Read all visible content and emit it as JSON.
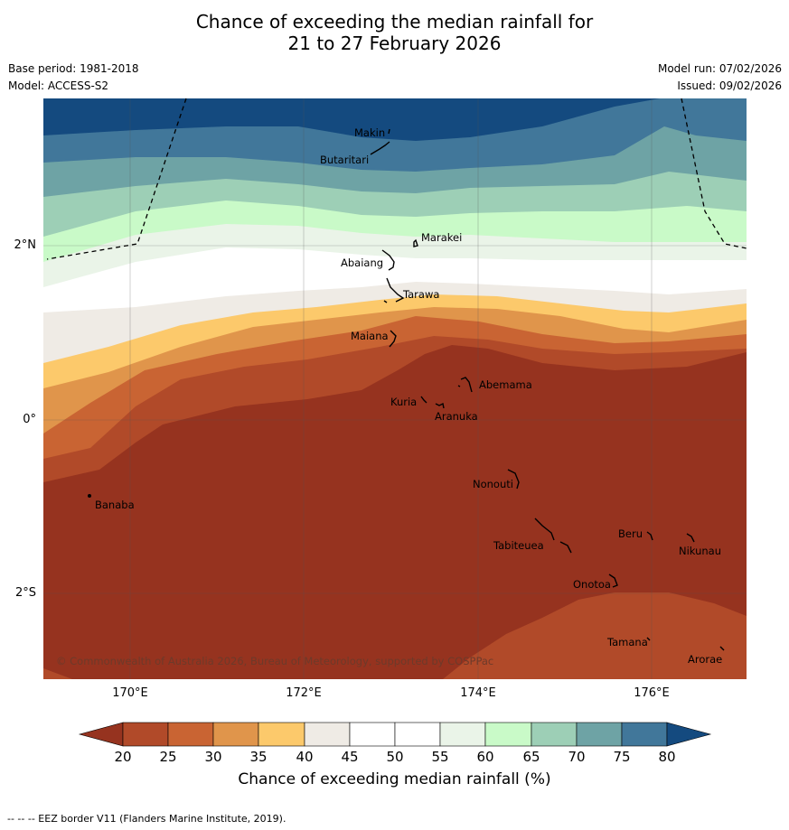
{
  "title": {
    "line1": "Chance of exceeding the median rainfall for",
    "line2": "21 to 27 February 2026"
  },
  "meta": {
    "base_period": "Base period: 1981-2018",
    "model": "Model: ACCESS-S2",
    "model_run": "Model run: 07/02/2026",
    "issued": "Issued: 09/02/2026"
  },
  "map": {
    "longitude_labels": [
      "170°E",
      "172°E",
      "174°E",
      "176°E"
    ],
    "latitude_labels": [
      "2°N",
      "0°",
      "2°S"
    ],
    "places": [
      "Makin",
      "Butaritari",
      "Marakei",
      "Abaiang",
      "Tarawa",
      "Maiana",
      "Abemama",
      "Kuria",
      "Aranuka",
      "Nonouti",
      "Banaba",
      "Tabiteuea",
      "Beru",
      "Nikunau",
      "Onotoa",
      "Tamana",
      "Arorae"
    ],
    "copyright": "© Commonwealth of Australia 2026, Bureau of Meteorology, supported by COSPPac",
    "colors": {
      "below20": "#96331f",
      "p20_25": "#b14a29",
      "p25_30": "#c96433",
      "p30_35": "#e0954b",
      "p35_40": "#fcc96b",
      "p40_45": "#efebe5",
      "p45_50": "#ffffff",
      "p50_55": "#ffffff",
      "p55_60": "#eaf4e8",
      "p60_65": "#c9fac8",
      "p65_70": "#9dcfb6",
      "p70_75": "#6ea3a5",
      "p75_80": "#41779a",
      "above80": "#144a7f"
    }
  },
  "colorbar": {
    "ticks": [
      "20",
      "25",
      "30",
      "35",
      "40",
      "45",
      "50",
      "55",
      "60",
      "65",
      "70",
      "75",
      "80"
    ],
    "title": "Chance of exceeding median rainfall (%)"
  },
  "footer": "--  --  -- EEZ border V11 (Flanders Marine Institute, 2019)."
}
